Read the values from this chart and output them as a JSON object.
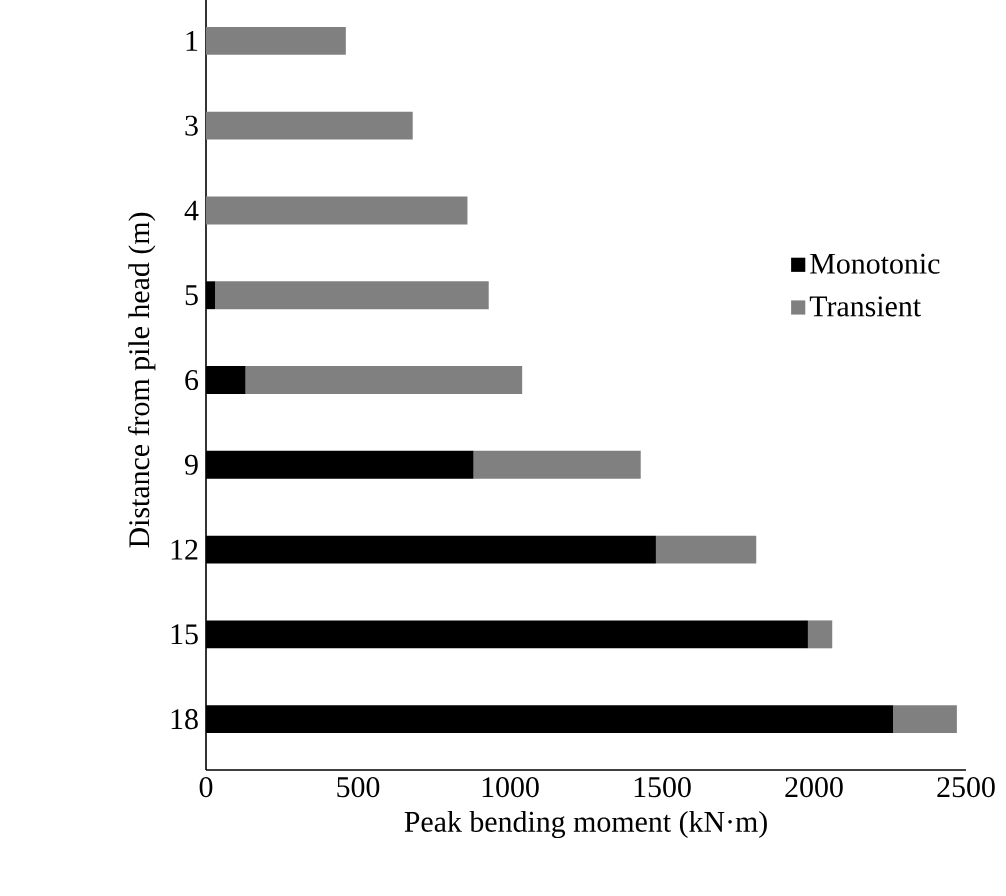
{
  "chart_data": {
    "type": "bar",
    "orientation": "horizontal",
    "stacked": true,
    "xlabel": "Peak bending moment (kN·m)",
    "ylabel": "Distance from pile head (m)",
    "categories": [
      "1",
      "3",
      "4",
      "5",
      "6",
      "9",
      "12",
      "15",
      "18"
    ],
    "series": [
      {
        "name": "Monotonic",
        "color": "#000000",
        "values": [
          0,
          0,
          0,
          30,
          130,
          880,
          1480,
          1980,
          2260
        ]
      },
      {
        "name": "Transient",
        "color": "#808080",
        "values": [
          460,
          680,
          860,
          900,
          910,
          550,
          330,
          80,
          210
        ]
      }
    ],
    "xlim": [
      0,
      2500
    ],
    "xticks": [
      0,
      500,
      1000,
      1500,
      2000,
      2500
    ],
    "grid": false,
    "legend": "right"
  }
}
